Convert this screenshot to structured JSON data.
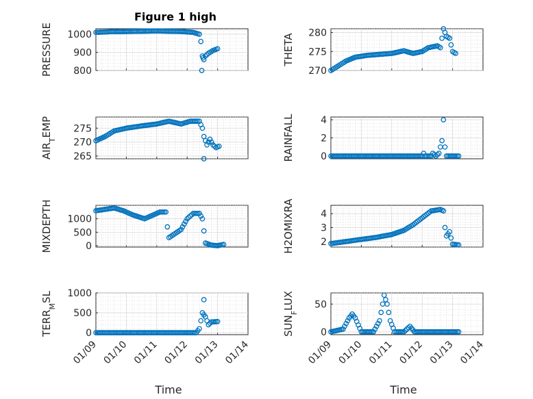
{
  "chart_data": [
    {
      "type": "scatter",
      "title": "Figure 1 high",
      "ylabel": "PRESSURE",
      "xlabel": "",
      "xlim": [
        "01/09",
        "01/14"
      ],
      "ylim": [
        800,
        1030
      ],
      "yticks": [
        800,
        900,
        1000
      ],
      "xticks": [
        "01/09",
        "01/10",
        "01/11",
        "01/12",
        "01/13",
        "01/14"
      ],
      "series_color": "#0072BD",
      "trace": [
        [
          0,
          1010
        ],
        [
          0.5,
          1014
        ],
        [
          1,
          1015
        ],
        [
          2,
          1018
        ],
        [
          2.8,
          1015
        ],
        [
          3.2,
          1010
        ],
        [
          3.4,
          1000
        ],
        [
          3.45,
          960
        ],
        [
          3.5,
          880
        ],
        [
          3.55,
          860
        ],
        [
          3.6,
          880
        ],
        [
          3.7,
          895
        ],
        [
          3.85,
          910
        ],
        [
          4.0,
          920
        ]
      ],
      "outliers": [
        [
          3.48,
          800
        ],
        [
          3.52,
          870
        ]
      ]
    },
    {
      "type": "scatter",
      "title": "",
      "ylabel": "THETA",
      "xlabel": "",
      "xlim": [
        "01/09",
        "01/14"
      ],
      "ylim": [
        270,
        281
      ],
      "yticks": [
        270,
        275,
        280
      ],
      "xticks": [
        "01/09",
        "01/10",
        "01/11",
        "01/12",
        "01/13",
        "01/14"
      ],
      "series_color": "#0072BD",
      "trace": [
        [
          0,
          270
        ],
        [
          0.2,
          271
        ],
        [
          0.5,
          272.5
        ],
        [
          0.8,
          273.5
        ],
        [
          1.2,
          274
        ],
        [
          2,
          274.5
        ],
        [
          2.4,
          275.2
        ],
        [
          2.7,
          274.5
        ],
        [
          3,
          275
        ],
        [
          3.2,
          276
        ],
        [
          3.5,
          276.5
        ],
        [
          3.6,
          276
        ],
        [
          3.7,
          281
        ],
        [
          3.8,
          279
        ],
        [
          3.9,
          278.5
        ],
        [
          4.0,
          275
        ],
        [
          4.1,
          274.5
        ]
      ],
      "outliers": []
    },
    {
      "type": "scatter",
      "title": "",
      "ylabel": "AIR_TEMP",
      "xlabel": "",
      "xlim": [
        "01/09",
        "01/14"
      ],
      "ylim": [
        264,
        279
      ],
      "yticks": [
        265,
        270,
        275
      ],
      "xticks": [
        "01/09",
        "01/10",
        "01/11",
        "01/12",
        "01/13",
        "01/14"
      ],
      "series_color": "#0072BD",
      "trace": [
        [
          0,
          270.5
        ],
        [
          0.3,
          272
        ],
        [
          0.6,
          274
        ],
        [
          1,
          275
        ],
        [
          1.5,
          275.8
        ],
        [
          2,
          276.5
        ],
        [
          2.4,
          277.5
        ],
        [
          2.8,
          276.5
        ],
        [
          3.1,
          277.5
        ],
        [
          3.4,
          277.5
        ],
        [
          3.5,
          275
        ],
        [
          3.55,
          272
        ],
        [
          3.65,
          269
        ],
        [
          3.75,
          271
        ],
        [
          3.85,
          269
        ],
        [
          3.95,
          268
        ],
        [
          4.05,
          268.5
        ]
      ],
      "outliers": [
        [
          3.55,
          264
        ]
      ]
    },
    {
      "type": "scatter",
      "title": "",
      "ylabel": "RAINFALL",
      "xlabel": "",
      "xlim": [
        "01/09",
        "01/14"
      ],
      "ylim": [
        -0.3,
        4.3
      ],
      "yticks": [
        0,
        2,
        4
      ],
      "xticks": [
        "01/09",
        "01/10",
        "01/11",
        "01/12",
        "01/13",
        "01/14"
      ],
      "series_color": "#0072BD",
      "trace": [
        [
          0,
          0
        ],
        [
          3.0,
          0
        ],
        [
          3.05,
          0.3
        ],
        [
          3.1,
          0
        ],
        [
          3.3,
          0
        ],
        [
          3.35,
          0.3
        ],
        [
          3.45,
          0
        ],
        [
          3.55,
          0.3
        ],
        [
          3.6,
          1.0
        ],
        [
          3.65,
          1.7
        ],
        [
          3.7,
          4.0
        ],
        [
          3.75,
          1.0
        ],
        [
          3.8,
          0
        ],
        [
          4.2,
          0
        ]
      ],
      "outliers": []
    },
    {
      "type": "scatter",
      "title": "",
      "ylabel": "MIXDEPTH",
      "xlabel": "",
      "xlim": [
        "01/09",
        "01/14"
      ],
      "ylim": [
        -50,
        1500
      ],
      "yticks": [
        0,
        500,
        1000
      ],
      "xticks": [
        "01/09",
        "01/10",
        "01/11",
        "01/12",
        "01/13",
        "01/14"
      ],
      "series_color": "#0072BD",
      "trace": [
        [
          0,
          1300
        ],
        [
          0.3,
          1350
        ],
        [
          0.6,
          1400
        ],
        [
          0.9,
          1300
        ],
        [
          1.2,
          1150
        ],
        [
          1.6,
          1000
        ],
        [
          1.9,
          1150
        ],
        [
          2.1,
          1250
        ],
        [
          2.3,
          1250
        ],
        [
          2.35,
          700
        ],
        [
          2.4,
          300
        ],
        [
          2.6,
          450
        ],
        [
          2.8,
          600
        ],
        [
          3.0,
          1000
        ],
        [
          3.2,
          1200
        ],
        [
          3.4,
          1200
        ],
        [
          3.5,
          1000
        ],
        [
          3.6,
          100
        ],
        [
          3.8,
          20
        ],
        [
          4.0,
          0
        ],
        [
          4.2,
          50
        ]
      ],
      "outliers": []
    },
    {
      "type": "scatter",
      "title": "",
      "ylabel": "H2OMIXRA",
      "xlabel": "",
      "xlim": [
        "01/09",
        "01/14"
      ],
      "ylim": [
        1.6,
        4.6
      ],
      "yticks": [
        2,
        3,
        4
      ],
      "xticks": [
        "01/09",
        "01/10",
        "01/11",
        "01/12",
        "01/13",
        "01/14"
      ],
      "series_color": "#0072BD",
      "trace": [
        [
          0,
          1.85
        ],
        [
          0.5,
          2.0
        ],
        [
          1,
          2.15
        ],
        [
          1.5,
          2.3
        ],
        [
          2,
          2.5
        ],
        [
          2.4,
          2.8
        ],
        [
          2.7,
          3.2
        ],
        [
          3.0,
          3.7
        ],
        [
          3.3,
          4.2
        ],
        [
          3.6,
          4.3
        ],
        [
          3.7,
          4.2
        ],
        [
          3.75,
          3.0
        ],
        [
          3.8,
          2.4
        ],
        [
          3.9,
          2.7
        ],
        [
          4.0,
          1.8
        ],
        [
          4.2,
          1.75
        ]
      ],
      "outliers": []
    },
    {
      "type": "scatter",
      "title": "",
      "ylabel": "TERR_MSL",
      "xlabel": "Time",
      "xlim": [
        "01/09",
        "01/14"
      ],
      "ylim": [
        -50,
        1000
      ],
      "yticks": [
        0,
        500,
        1000
      ],
      "xticks": [
        "01/09",
        "01/10",
        "01/11",
        "01/12",
        "01/13",
        "01/14"
      ],
      "series_color": "#0072BD",
      "trace": [
        [
          0,
          0
        ],
        [
          3.3,
          0
        ],
        [
          3.4,
          100
        ],
        [
          3.5,
          500
        ],
        [
          3.6,
          400
        ],
        [
          3.7,
          200
        ],
        [
          3.8,
          270
        ],
        [
          4.0,
          280
        ]
      ],
      "outliers": [
        [
          3.55,
          830
        ]
      ]
    },
    {
      "type": "scatter",
      "title": "",
      "ylabel": "SUN_FLUX",
      "xlabel": "Time",
      "xlim": [
        "01/09",
        "01/14"
      ],
      "ylim": [
        -5,
        70
      ],
      "yticks": [
        0,
        50
      ],
      "xticks": [
        "01/09",
        "01/10",
        "01/11",
        "01/12",
        "01/13",
        "01/14"
      ],
      "series_color": "#0072BD",
      "trace": [
        [
          0,
          0
        ],
        [
          0.4,
          5
        ],
        [
          0.6,
          25
        ],
        [
          0.7,
          32
        ],
        [
          0.8,
          25
        ],
        [
          1.0,
          0
        ],
        [
          1.4,
          0
        ],
        [
          1.6,
          20
        ],
        [
          1.7,
          50
        ],
        [
          1.75,
          66
        ],
        [
          1.85,
          50
        ],
        [
          1.95,
          20
        ],
        [
          2.1,
          0
        ],
        [
          2.4,
          0
        ],
        [
          2.5,
          5
        ],
        [
          2.6,
          10
        ],
        [
          2.75,
          0
        ],
        [
          4.2,
          0
        ]
      ],
      "outliers": []
    }
  ]
}
